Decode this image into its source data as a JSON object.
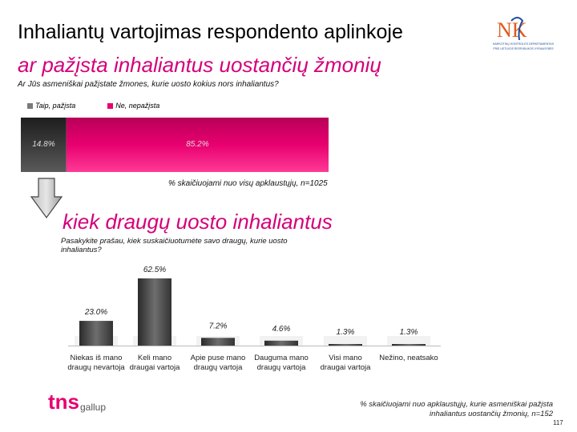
{
  "slide": {
    "title": "Inhaliantų vartojimas respondento aplinkoje",
    "subtitle1": "ar pažįsta inhaliantus uostančių žmonių",
    "question1": "Ar Jūs asmeniškai pažįstate žmones, kurie uosto kokius nors inhaliantus?",
    "note1": "% skaičiuojami nuo visų apklaustųjų, n=1025",
    "subtitle2": "kiek draugų uosto inhaliantus",
    "question2": "Pasakykite prašau, kiek suskaičiuotumėte savo draugų, kurie uosto inhaliantus?",
    "footnote": "% skaičiuojami nuo apklaustųjų, kurie asmeniškai pažįsta inhaliantus uostančių žmonių, n=152",
    "page_number": "117"
  },
  "logos": {
    "nkd_line1": "NARKOTIKŲ KONTROLĖS DEPARTAMENTAS",
    "nkd_line2": "PRIE LIETUVOS RESPUBLIKOS VYRIAUSYBĖS",
    "tns_text": "tns",
    "gallup_text": "gallup"
  },
  "colors": {
    "magenta": "#e8006f",
    "dark": "#3a3a3a",
    "accent_text": "#d4007a"
  },
  "chart_data": [
    {
      "type": "bar",
      "orientation": "horizontal-stacked",
      "series": [
        {
          "name": "Taip, pažįsta",
          "values": [
            14.8
          ],
          "label": "14.8%",
          "color": "#3a3a3a"
        },
        {
          "name": "Ne, nepažįsta",
          "values": [
            85.2
          ],
          "label": "85.2%",
          "color": "#e8006f"
        }
      ],
      "xlim": [
        0,
        100
      ]
    },
    {
      "type": "bar",
      "categories": [
        [
          "Niekas iš mano",
          "draugų nevartoja"
        ],
        [
          "Keli mano",
          "draugai vartoja"
        ],
        [
          "Apie puse mano",
          "draugų vartoja"
        ],
        [
          "Dauguma mano",
          "draugų vartoja"
        ],
        [
          "Visi mano",
          "draugai vartoja"
        ],
        [
          "Nežino, neatsako"
        ]
      ],
      "values": [
        23.0,
        62.5,
        7.2,
        4.6,
        1.3,
        1.3
      ],
      "labels": [
        "23.0%",
        "62.5%",
        "7.2%",
        "4.6%",
        "1.3%",
        "1.3%"
      ],
      "ylim": [
        0,
        62.5
      ]
    }
  ]
}
